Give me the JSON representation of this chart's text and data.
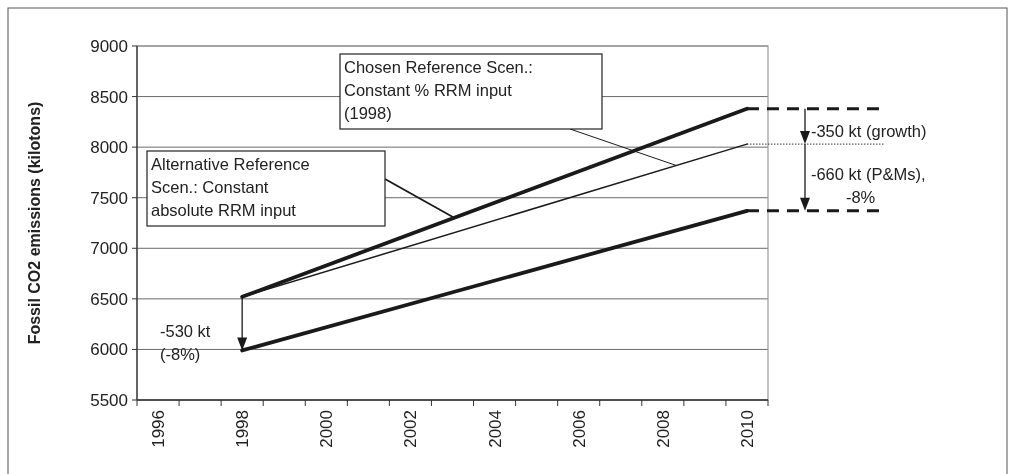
{
  "chart_data": {
    "type": "line",
    "ylabel": "Fossil CO2 emissions (kilotons)",
    "xlim": [
      1995.5,
      2010.5
    ],
    "xticks": [
      1996,
      1998,
      2000,
      2002,
      2004,
      2006,
      2008,
      2010,
      {
        "value": 1995.5,
        "label": null
      },
      {
        "value": 1996.5,
        "label": null
      },
      {
        "value": 1997.5,
        "label": null
      },
      {
        "value": 1998.5,
        "label": null
      },
      {
        "value": 1999.5,
        "label": null
      },
      {
        "value": 2000.5,
        "label": null
      },
      {
        "value": 2001.5,
        "label": null
      },
      {
        "value": 2002.5,
        "label": null
      },
      {
        "value": 2003.5,
        "label": null
      },
      {
        "value": 2004.5,
        "label": null
      },
      {
        "value": 2005.5,
        "label": null
      },
      {
        "value": 2006.5,
        "label": null
      },
      {
        "value": 2007.5,
        "label": null
      },
      {
        "value": 2008.5,
        "label": null
      },
      {
        "value": 2009.5,
        "label": null
      },
      {
        "value": 2010.5,
        "label": null
      }
    ],
    "ylim": [
      5500,
      9000
    ],
    "yticks": [
      5500,
      6000,
      6500,
      7000,
      7500,
      8000,
      8500,
      9000
    ],
    "grid": "y",
    "marker": "none",
    "line_style": "solid",
    "x": [
      1998,
      2010
    ],
    "series": [
      {
        "color": "#1a1a1a",
        "values": [
          6520,
          8380
        ]
      },
      {
        "color": "#1a1a1a",
        "values": [
          6520,
          8030
        ]
      },
      {
        "color": "#1a1a1a",
        "values": [
          5990,
          7370
        ]
      }
    ],
    "annotations": [
      "Chosen Reference Scen.:\nConstant % RRM input\n(1998)",
      "Alternative Reference\nScen.: Constant\nabsolute RRM input",
      "-530 kt\n(-8%)",
      {
        "text": "-350 kt (growth)",
        "x": 2010,
        "y": 8030
      },
      {
        "text": "-660 kt (P&Ms),\n-8%",
        "x": 2010,
        "y": 7370
      }
    ]
  }
}
